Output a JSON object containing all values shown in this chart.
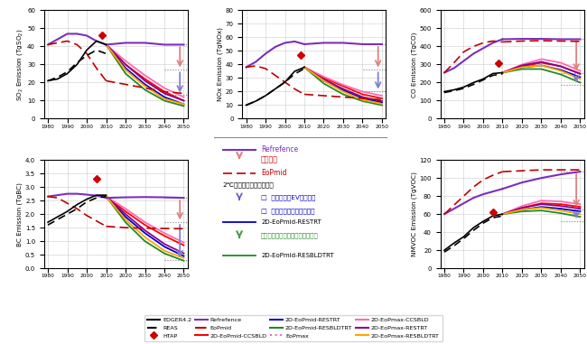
{
  "years_hist": [
    1980,
    1985,
    1990,
    1995,
    2000,
    2005,
    2010
  ],
  "years_proj": [
    2010,
    2020,
    2030,
    2040,
    2050
  ],
  "panels": {
    "SO2": {
      "title": "SO$_2$ Emission (TgSO$_2$)",
      "ylim": [
        0,
        60
      ],
      "yticks": [
        0,
        10,
        20,
        30,
        40,
        50,
        60
      ],
      "htap_year": 2008,
      "htap_val": 46,
      "arrows": {
        "ref": 41,
        "mid": 27,
        "low": 13
      },
      "edger": [
        21,
        22,
        25,
        30,
        38,
        43,
        41
      ],
      "reas": [
        21,
        23,
        26,
        31,
        35,
        38,
        36
      ],
      "ref_hist": [
        41,
        44,
        47,
        47,
        46,
        43,
        41
      ],
      "ref_proj": [
        41,
        42,
        42,
        41,
        41
      ],
      "EoPmid_hist": [
        41,
        42,
        43,
        41,
        36,
        28,
        21
      ],
      "EoPmid_proj": [
        21,
        19,
        17,
        15,
        14
      ],
      "lines_proj": {
        "2D-EoPmid-CCSBLD": [
          41,
          30,
          22,
          15,
          10
        ],
        "2D-EoPmax-CCSBLD": [
          41,
          32,
          24,
          17,
          12
        ],
        "2D-EoPmid-RESTRT": [
          41,
          28,
          19,
          12,
          8
        ],
        "2D-EoPmax-RESTRT": [
          41,
          30,
          21,
          14,
          10
        ],
        "2D-EoPmid-RESBLDTRT": [
          41,
          25,
          16,
          10,
          7
        ],
        "2D-EoPmax-RESBLDTRT": [
          41,
          27,
          18,
          11,
          8
        ]
      }
    },
    "NOx": {
      "title": "NOx Emission (TgNOx)",
      "ylim": [
        0,
        80
      ],
      "yticks": [
        0,
        10,
        20,
        30,
        40,
        50,
        60,
        70,
        80
      ],
      "htap_year": 2008,
      "htap_val": 47,
      "arrows": {
        "ref": 55,
        "mid": 36,
        "low": 20
      },
      "edger": [
        10,
        13,
        17,
        22,
        27,
        35,
        38
      ],
      "reas": [
        10,
        13,
        17,
        22,
        27,
        33,
        37
      ],
      "ref_hist": [
        38,
        42,
        48,
        53,
        56,
        57,
        55
      ],
      "ref_proj": [
        55,
        56,
        56,
        55,
        55
      ],
      "EoPmid_hist": [
        38,
        39,
        37,
        32,
        27,
        22,
        18
      ],
      "EoPmid_proj": [
        18,
        17,
        16,
        15,
        14
      ],
      "lines_proj": {
        "2D-EoPmid-CCSBLD": [
          38,
          30,
          24,
          18,
          15
        ],
        "2D-EoPmax-CCSBLD": [
          38,
          31,
          25,
          20,
          17
        ],
        "2D-EoPmid-RESTRT": [
          38,
          28,
          21,
          15,
          12
        ],
        "2D-EoPmax-RESTRT": [
          38,
          29,
          22,
          16,
          13
        ],
        "2D-EoPmid-RESBLDTRT": [
          38,
          26,
          18,
          13,
          10
        ],
        "2D-EoPmax-RESBLDTRT": [
          38,
          28,
          20,
          14,
          11
        ]
      }
    },
    "CO": {
      "title": "CO Emission (TgCO)",
      "ylim": [
        0,
        600
      ],
      "yticks": [
        0,
        100,
        200,
        300,
        400,
        500,
        600
      ],
      "htap_year": 2008,
      "htap_val": 305,
      "arrows": {
        "ref": 440,
        "mid": 250,
        "low": 185
      },
      "edger": [
        150,
        160,
        175,
        200,
        220,
        250,
        255
      ],
      "reas": [
        145,
        155,
        168,
        190,
        215,
        240,
        248
      ],
      "ref_hist": [
        255,
        280,
        320,
        360,
        390,
        420,
        440
      ],
      "ref_proj": [
        440,
        442,
        442,
        440,
        440
      ],
      "EoPmid_hist": [
        255,
        310,
        370,
        400,
        420,
        430,
        425
      ],
      "EoPmid_proj": [
        425,
        430,
        432,
        430,
        428
      ],
      "lines_proj": {
        "2D-EoPmid-CCSBLD": [
          255,
          290,
          310,
          290,
          250
        ],
        "2D-EoPmax-CCSBLD": [
          255,
          300,
          330,
          310,
          265
        ],
        "2D-EoPmid-RESTRT": [
          255,
          285,
          295,
          270,
          230
        ],
        "2D-EoPmax-RESTRT": [
          255,
          295,
          315,
          290,
          248
        ],
        "2D-EoPmid-RESBLDTRT": [
          255,
          275,
          275,
          245,
          200
        ],
        "2D-EoPmax-RESBLDTRT": [
          255,
          285,
          295,
          265,
          220
        ]
      }
    },
    "BC": {
      "title": "BC Emission (TgBC)",
      "ylim": [
        0.0,
        4.0
      ],
      "yticks": [
        0.0,
        0.5,
        1.0,
        1.5,
        2.0,
        2.5,
        3.0,
        3.5,
        4.0
      ],
      "htap_year": 2005,
      "htap_val": 3.3,
      "arrows": {
        "ref": 2.6,
        "mid": 1.7,
        "low": 0.3
      },
      "edger": [
        1.7,
        1.9,
        2.1,
        2.35,
        2.55,
        2.7,
        2.7
      ],
      "reas": [
        1.6,
        1.8,
        2.0,
        2.2,
        2.45,
        2.6,
        2.65
      ],
      "ref_hist": [
        2.65,
        2.7,
        2.75,
        2.75,
        2.72,
        2.68,
        2.6
      ],
      "ref_proj": [
        2.6,
        2.62,
        2.63,
        2.62,
        2.6
      ],
      "EoPmid_hist": [
        2.65,
        2.6,
        2.4,
        2.2,
        1.95,
        1.75,
        1.55
      ],
      "EoPmid_proj": [
        1.55,
        1.5,
        1.48,
        1.47,
        1.46
      ],
      "lines_proj": {
        "2D-EoPmid-CCSBLD": [
          2.65,
          2.1,
          1.6,
          1.2,
          0.85
        ],
        "2D-EoPmax-CCSBLD": [
          2.65,
          2.2,
          1.7,
          1.3,
          0.95
        ],
        "2D-EoPmid-RESTRT": [
          2.65,
          1.9,
          1.3,
          0.8,
          0.45
        ],
        "2D-EoPmax-RESTRT": [
          2.65,
          2.0,
          1.4,
          0.9,
          0.55
        ],
        "2D-EoPmid-RESBLDTRT": [
          2.65,
          1.7,
          1.0,
          0.55,
          0.28
        ],
        "2D-EoPmax-RESBLDTRT": [
          2.65,
          1.8,
          1.15,
          0.65,
          0.38
        ]
      }
    },
    "NMVOC": {
      "title": "NMVOC Emission (TgVOC)",
      "ylim": [
        0,
        120
      ],
      "yticks": [
        0,
        20,
        40,
        60,
        80,
        100,
        120
      ],
      "htap_year": 2005,
      "htap_val": 62,
      "arrows": {
        "ref": 107,
        "mid": 65,
        "low": 52
      },
      "edger": [
        20,
        28,
        35,
        45,
        52,
        58,
        60
      ],
      "reas": [
        18,
        25,
        33,
        42,
        50,
        56,
        58
      ],
      "ref_hist": [
        60,
        66,
        72,
        78,
        82,
        85,
        88
      ],
      "ref_proj": [
        88,
        95,
        100,
        104,
        107
      ],
      "EoPmid_hist": [
        60,
        70,
        80,
        90,
        98,
        103,
        107
      ],
      "EoPmid_proj": [
        107,
        108,
        109,
        109,
        109
      ],
      "lines_proj": {
        "2D-EoPmid-CCSBLD": [
          60,
          67,
          72,
          71,
          68
        ],
        "2D-EoPmax-CCSBLD": [
          60,
          69,
          75,
          74,
          71
        ],
        "2D-EoPmid-RESTRT": [
          60,
          65,
          68,
          66,
          63
        ],
        "2D-EoPmax-RESTRT": [
          60,
          67,
          71,
          69,
          66
        ],
        "2D-EoPmid-RESBLDTRT": [
          60,
          63,
          64,
          61,
          57
        ],
        "2D-EoPmax-RESBLDTRT": [
          60,
          65,
          67,
          64,
          60
        ]
      }
    }
  },
  "line_colors": {
    "edger": "#000000",
    "reas": "#000000",
    "ref": "#7B2FBE",
    "EoPmid_dashed": "#C00000",
    "2D-EoPmid-CCSBLD": "#FF0000",
    "2D-EoPmax-CCSBLD": "#FF69B4",
    "2D-EoPmid-RESTRT": "#0000CD",
    "2D-EoPmax-RESTRT": "#8B008B",
    "2D-EoPmid-RESBLDTRT": "#228B22",
    "2D-EoPmax-RESBLDTRT": "#FFA500"
  }
}
